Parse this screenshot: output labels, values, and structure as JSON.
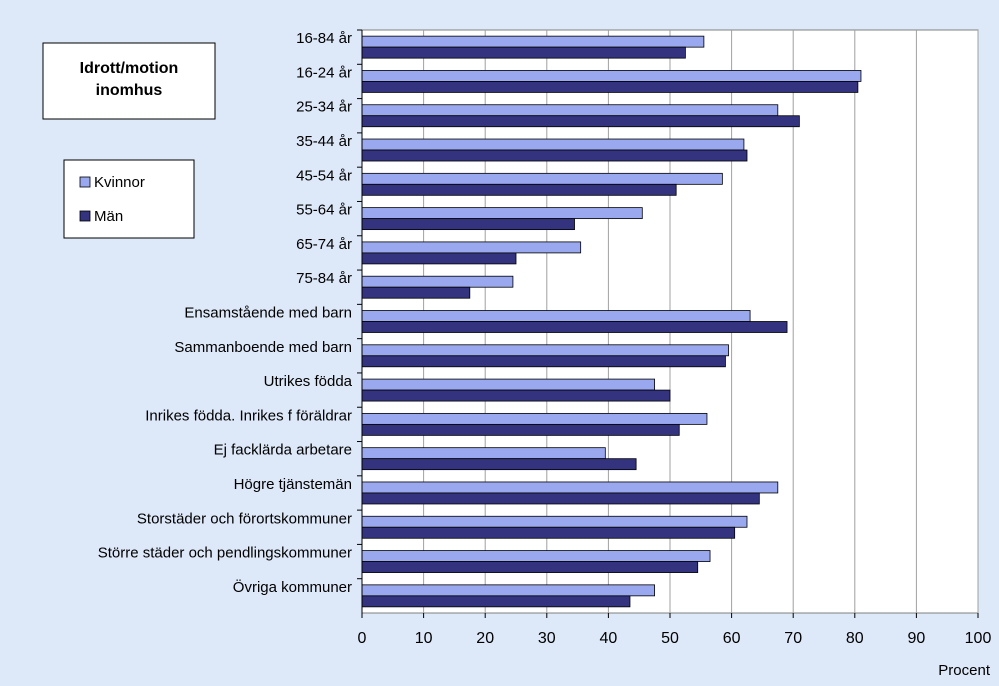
{
  "colors": {
    "background": "#dde8f8",
    "plot_background": "#ffffff",
    "kvinnor": "#9aa8f0",
    "man": "#33337f",
    "gridline": "#a0a0a0"
  },
  "chart_data": {
    "type": "bar",
    "orientation": "horizontal",
    "title": "Idrott/motion inomhus",
    "xlabel": "Procent",
    "ylabel": "",
    "xlim": [
      0,
      100
    ],
    "xticks": [
      0,
      10,
      20,
      30,
      40,
      50,
      60,
      70,
      80,
      90,
      100
    ],
    "grid": "vertical",
    "legend_position": "left",
    "categories": [
      "16-84 år",
      "16-24 år",
      "25-34 år",
      "35-44 år",
      "45-54 år",
      "55-64 år",
      "65-74 år",
      "75-84 år",
      "Ensamstående med barn",
      "Sammanboende med barn",
      "Utrikes födda",
      "Inrikes födda. Inrikes f föräldrar",
      "Ej facklärda arbetare",
      "Högre tjänstemän",
      "Storstäder och förortskommuner",
      "Större städer och pendlingskommuner",
      "Övriga kommuner"
    ],
    "series": [
      {
        "name": "Kvinnor",
        "color": "#9aa8f0",
        "values": [
          55.5,
          81,
          67.5,
          62,
          58.5,
          45.5,
          35.5,
          24.5,
          63,
          59.5,
          47.5,
          56,
          39.5,
          67.5,
          62.5,
          56.5,
          47.5
        ]
      },
      {
        "name": "Män",
        "color": "#33337f",
        "values": [
          52.5,
          80.5,
          71,
          62.5,
          51,
          34.5,
          25,
          17.5,
          69,
          59,
          50,
          51.5,
          44.5,
          64.5,
          60.5,
          54.5,
          43.5
        ]
      }
    ]
  }
}
